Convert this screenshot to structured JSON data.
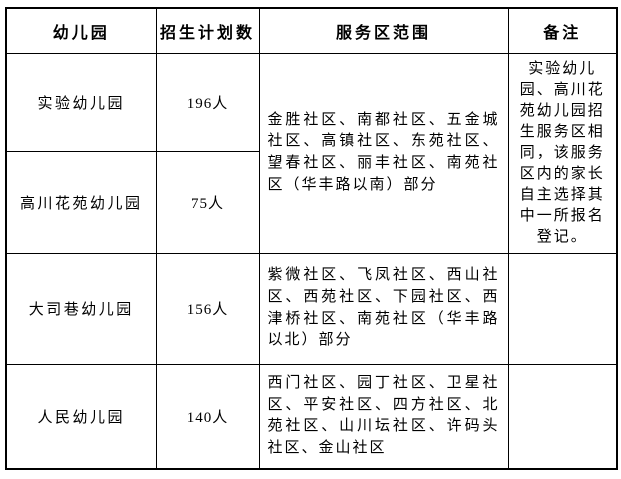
{
  "table": {
    "headers": [
      "幼儿园",
      "招生计划数",
      "服务区范围",
      "备注"
    ],
    "merged_rows_1_2": {
      "service_area": "金胜社区、南都社区、五金城社区、高镇社区、东苑社区、望春社区、丽丰社区、南苑社区（华丰路以南）部分",
      "remark": "实验幼儿园、高川花苑幼儿园招生服务区相同，该服务区内的家长自主选择其中一所报名登记。"
    },
    "rows": [
      {
        "name": "实验幼儿园",
        "plan": "196人"
      },
      {
        "name": "高川花苑幼儿园",
        "plan": "75人"
      },
      {
        "name": "大司巷幼儿园",
        "plan": "156人",
        "service_area": "紫微社区、飞凤社区、西山社区、西苑社区、下园社区、西津桥社区、南苑社区（华丰路以北）部分",
        "remark": ""
      },
      {
        "name": "人民幼儿园",
        "plan": "140人",
        "service_area": "西门社区、园丁社区、卫星社区、平安社区、四方社区、北苑社区、山川坛社区、许码头社区、金山社区",
        "remark": ""
      }
    ]
  }
}
